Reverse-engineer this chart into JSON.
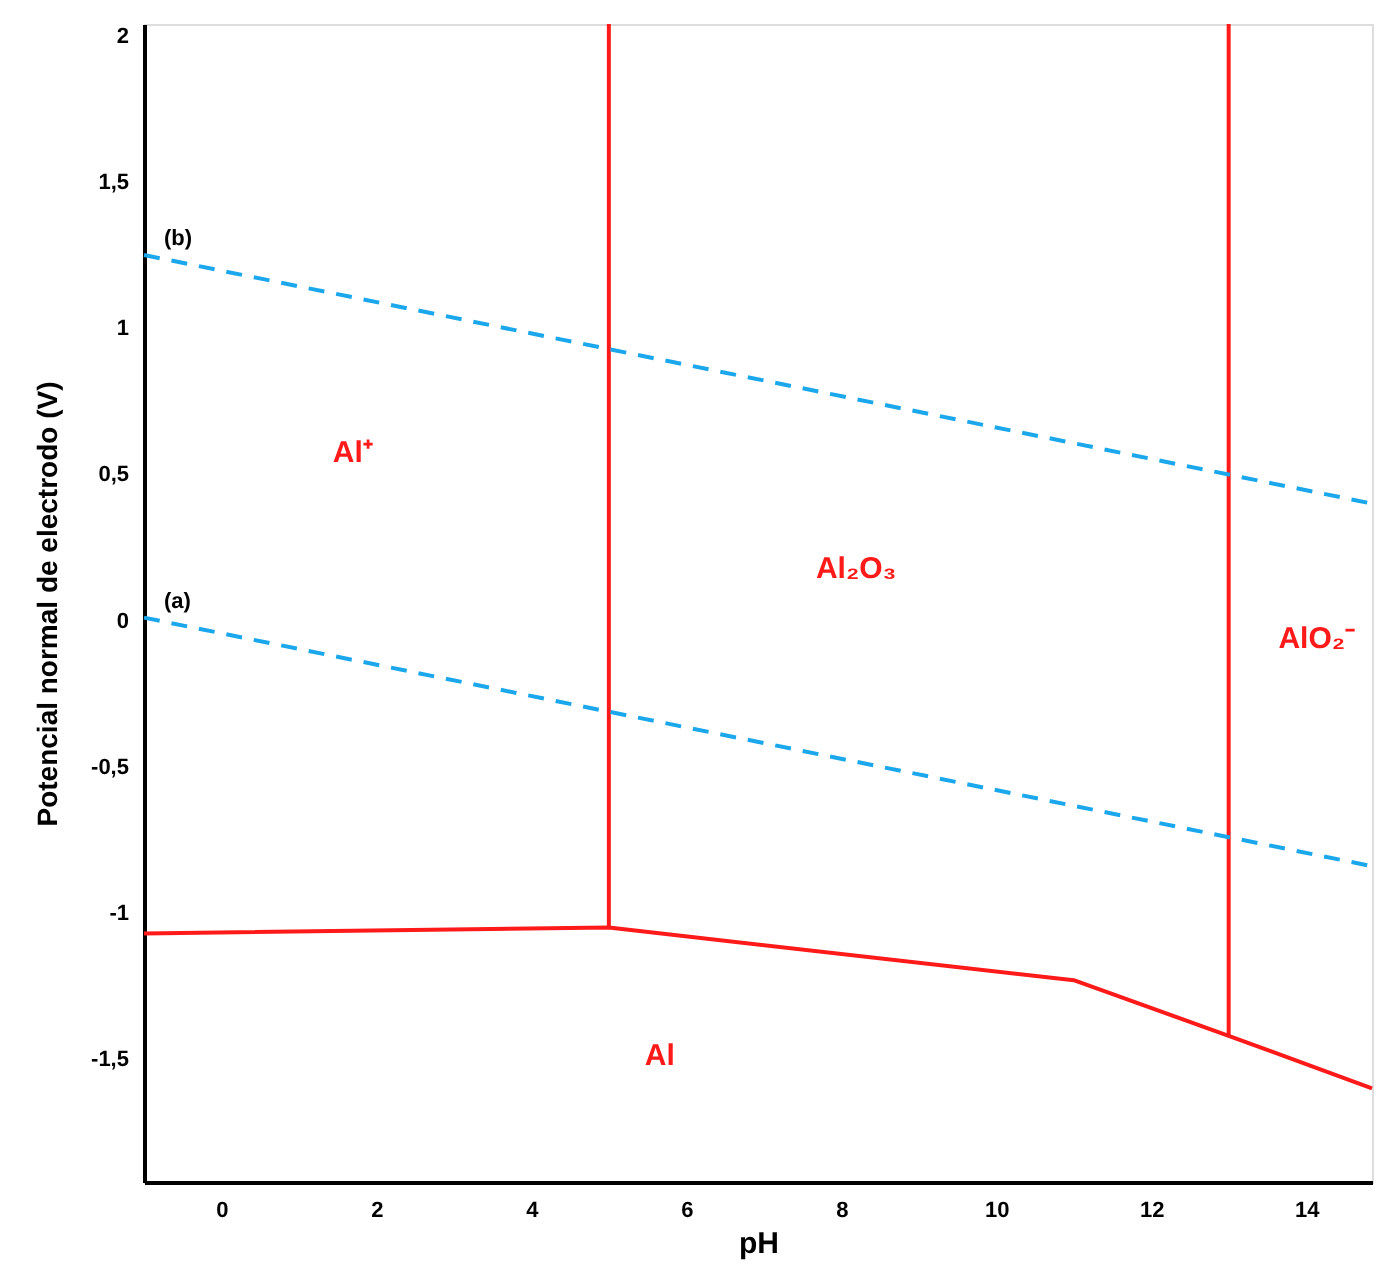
{
  "chart_data": {
    "type": "line",
    "xlabel": "pH",
    "ylabel": "Potencial normal de electrodo (V)",
    "xlim": [
      -1,
      14.85
    ],
    "ylim": [
      -1.92,
      2.04
    ],
    "xticks": [
      0,
      2,
      4,
      6,
      8,
      10,
      12,
      14
    ],
    "yticks": [
      {
        "value": -1.5,
        "label": "-1,5"
      },
      -1,
      {
        "value": -0.5,
        "label": "-0,5"
      },
      0,
      {
        "value": 0.5,
        "label": "0,5"
      },
      1,
      {
        "value": 1.5,
        "label": "1,5"
      },
      2
    ],
    "grid": false,
    "marker": "none",
    "series": [
      {
        "color": "#ff1a1a",
        "line_style": "solid",
        "x": [
          -1,
          5,
          11,
          13,
          14.85
        ],
        "values": [
          -1.07,
          -1.05,
          -1.23,
          -1.42,
          -1.6
        ]
      },
      {
        "color": "#ff1a1a",
        "line_style": "solid",
        "x": [
          5,
          5
        ],
        "values": [
          -1.05,
          2.04
        ]
      },
      {
        "color": "#ff1a1a",
        "line_style": "solid",
        "x": [
          13,
          13
        ],
        "values": [
          -1.42,
          2.04
        ]
      },
      {
        "name": "(a)",
        "color": "#1aa7ec",
        "line_style": "dashed",
        "x": [
          -1,
          14.85
        ],
        "values": [
          0.01,
          -0.84
        ]
      },
      {
        "name": "(b)",
        "color": "#1aa7ec",
        "line_style": "dashed",
        "x": [
          -1,
          14.85
        ],
        "values": [
          1.25,
          0.4
        ]
      }
    ],
    "annotations": [
      "Al⁺",
      "Al₂O₃",
      "AlO₂⁻",
      "Al"
    ]
  }
}
